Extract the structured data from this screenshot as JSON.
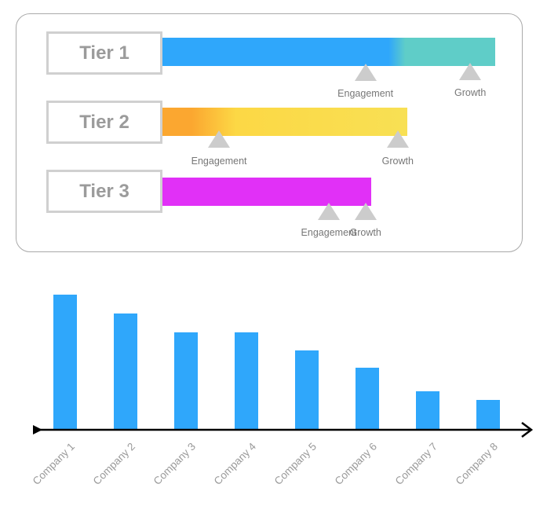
{
  "tiers": [
    {
      "label": "Tier 1",
      "bar_gradient": [
        "#2fa7fb",
        "#2fa7fb",
        "#5fcdc8",
        "#5fcdc8"
      ],
      "bar_end": 1.0,
      "markers": [
        {
          "label": "Engagement",
          "position": 0.61
        },
        {
          "label": "Growth",
          "position": 0.925
        }
      ]
    },
    {
      "label": "Tier 2",
      "bar_gradient": [
        "#fba730",
        "#fba730",
        "#fcd845",
        "#f8e054"
      ],
      "bar_end": 0.737,
      "markers": [
        {
          "label": "Engagement",
          "position": 0.17
        },
        {
          "label": "Growth",
          "position": 0.707
        }
      ]
    },
    {
      "label": "Tier 3",
      "bar_gradient": [
        "#e130f7",
        "#e130f7",
        "#e130f7",
        "#e130f7"
      ],
      "bar_end": 0.628,
      "markers": [
        {
          "label": "Engagement",
          "position": 0.5
        },
        {
          "label": "Growth",
          "position": 0.61
        }
      ]
    }
  ],
  "chart_data": {
    "type": "bar",
    "categories": [
      "Company 1",
      "Company 2",
      "Company 3",
      "Company 4",
      "Company 5",
      "Company 6",
      "Company 7",
      "Company 8"
    ],
    "values": [
      172,
      148,
      124,
      124,
      101,
      79,
      49,
      38
    ],
    "ylim": [
      0,
      180
    ],
    "bar_color": "#2fa7fb",
    "axis_color": "#000000",
    "title": "",
    "xlabel": "",
    "ylabel": "",
    "grid": false
  }
}
